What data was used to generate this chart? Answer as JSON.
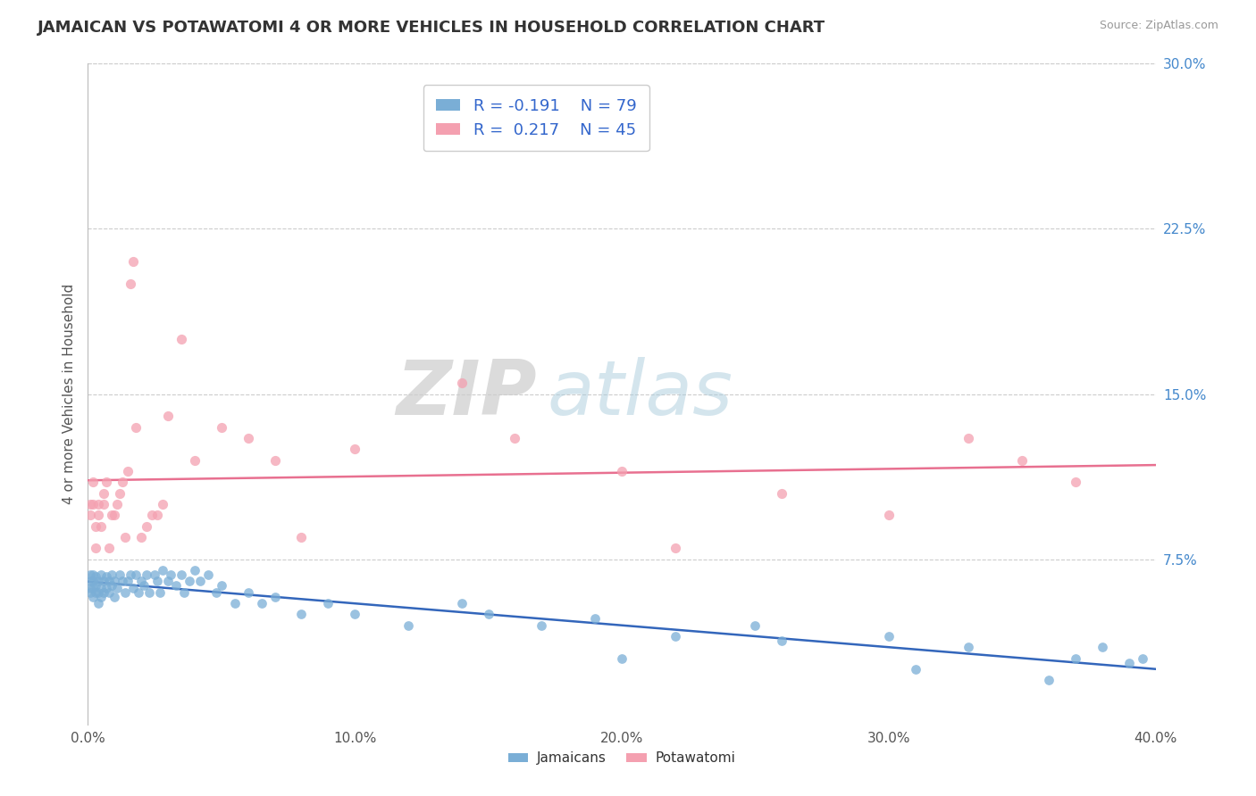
{
  "title": "JAMAICAN VS POTAWATOMI 4 OR MORE VEHICLES IN HOUSEHOLD CORRELATION CHART",
  "source": "Source: ZipAtlas.com",
  "ylabel": "4 or more Vehicles in Household",
  "xlim": [
    0.0,
    0.4
  ],
  "ylim": [
    0.0,
    0.3
  ],
  "xticks": [
    0.0,
    0.1,
    0.2,
    0.3,
    0.4
  ],
  "xtick_labels": [
    "0.0%",
    "10.0%",
    "20.0%",
    "30.0%",
    "40.0%"
  ],
  "yticks_right": [
    0.075,
    0.15,
    0.225,
    0.3
  ],
  "ytick_labels_right": [
    "7.5%",
    "15.0%",
    "22.5%",
    "30.0%"
  ],
  "legend_R_jamaican": "-0.191",
  "legend_N_jamaican": "79",
  "legend_R_potawatomi": "0.217",
  "legend_N_potawatomi": "45",
  "color_jamaican": "#7aaed6",
  "color_potawatomi": "#f4a0b0",
  "color_trendline_jamaican": "#3366bb",
  "color_trendline_potawatomi": "#e87090",
  "watermark_zip": "ZIP",
  "watermark_atlas": "atlas",
  "jamaican_x": [
    0.001,
    0.001,
    0.001,
    0.001,
    0.002,
    0.002,
    0.002,
    0.002,
    0.003,
    0.003,
    0.003,
    0.004,
    0.004,
    0.004,
    0.005,
    0.005,
    0.005,
    0.006,
    0.006,
    0.007,
    0.007,
    0.008,
    0.008,
    0.009,
    0.009,
    0.01,
    0.01,
    0.011,
    0.012,
    0.013,
    0.014,
    0.015,
    0.016,
    0.017,
    0.018,
    0.019,
    0.02,
    0.021,
    0.022,
    0.023,
    0.025,
    0.026,
    0.027,
    0.028,
    0.03,
    0.031,
    0.033,
    0.035,
    0.036,
    0.038,
    0.04,
    0.042,
    0.045,
    0.048,
    0.05,
    0.055,
    0.06,
    0.065,
    0.07,
    0.08,
    0.09,
    0.1,
    0.12,
    0.14,
    0.15,
    0.17,
    0.19,
    0.2,
    0.22,
    0.25,
    0.26,
    0.3,
    0.31,
    0.33,
    0.36,
    0.37,
    0.38,
    0.39,
    0.395
  ],
  "jamaican_y": [
    0.06,
    0.062,
    0.065,
    0.068,
    0.058,
    0.062,
    0.065,
    0.068,
    0.06,
    0.063,
    0.067,
    0.055,
    0.06,
    0.065,
    0.058,
    0.062,
    0.068,
    0.06,
    0.065,
    0.062,
    0.067,
    0.06,
    0.065,
    0.063,
    0.068,
    0.058,
    0.065,
    0.062,
    0.068,
    0.065,
    0.06,
    0.065,
    0.068,
    0.062,
    0.068,
    0.06,
    0.065,
    0.063,
    0.068,
    0.06,
    0.068,
    0.065,
    0.06,
    0.07,
    0.065,
    0.068,
    0.063,
    0.068,
    0.06,
    0.065,
    0.07,
    0.065,
    0.068,
    0.06,
    0.063,
    0.055,
    0.06,
    0.055,
    0.058,
    0.05,
    0.055,
    0.05,
    0.045,
    0.055,
    0.05,
    0.045,
    0.048,
    0.03,
    0.04,
    0.045,
    0.038,
    0.04,
    0.025,
    0.035,
    0.02,
    0.03,
    0.035,
    0.028,
    0.03
  ],
  "potawatomi_x": [
    0.001,
    0.001,
    0.002,
    0.002,
    0.003,
    0.003,
    0.004,
    0.004,
    0.005,
    0.006,
    0.006,
    0.007,
    0.008,
    0.009,
    0.01,
    0.011,
    0.012,
    0.013,
    0.014,
    0.015,
    0.016,
    0.017,
    0.018,
    0.02,
    0.022,
    0.024,
    0.026,
    0.028,
    0.03,
    0.035,
    0.04,
    0.05,
    0.06,
    0.07,
    0.08,
    0.1,
    0.14,
    0.16,
    0.2,
    0.22,
    0.26,
    0.3,
    0.33,
    0.35,
    0.37
  ],
  "potawatomi_y": [
    0.095,
    0.1,
    0.1,
    0.11,
    0.08,
    0.09,
    0.095,
    0.1,
    0.09,
    0.1,
    0.105,
    0.11,
    0.08,
    0.095,
    0.095,
    0.1,
    0.105,
    0.11,
    0.085,
    0.115,
    0.2,
    0.21,
    0.135,
    0.085,
    0.09,
    0.095,
    0.095,
    0.1,
    0.14,
    0.175,
    0.12,
    0.135,
    0.13,
    0.12,
    0.085,
    0.125,
    0.155,
    0.13,
    0.115,
    0.08,
    0.105,
    0.095,
    0.13,
    0.12,
    0.11
  ]
}
